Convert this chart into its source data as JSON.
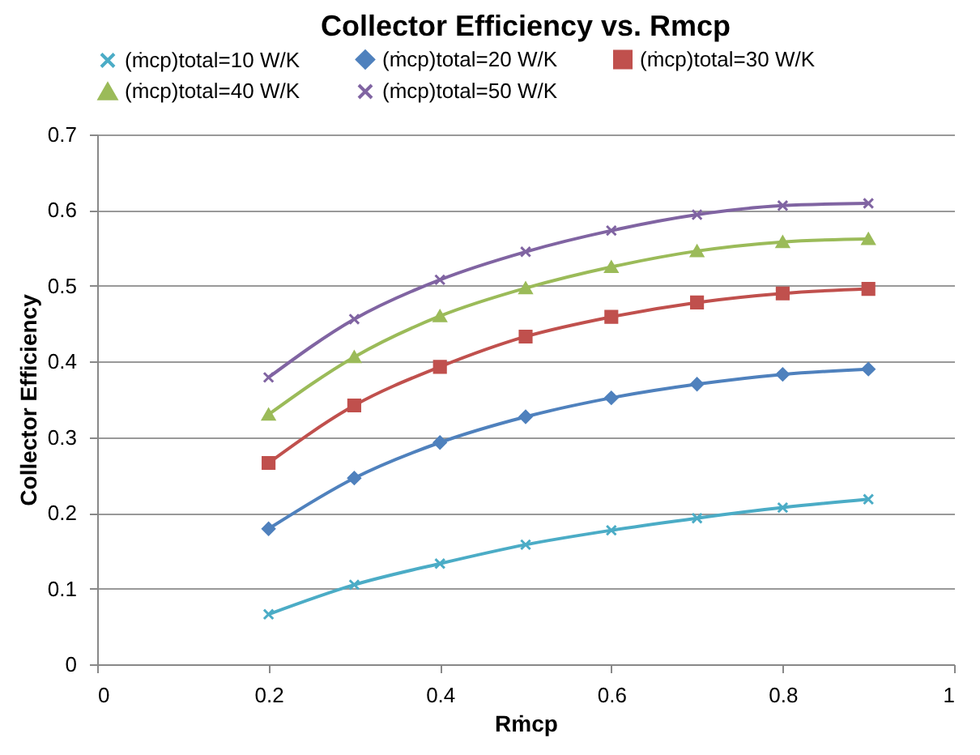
{
  "chart_data": {
    "type": "line",
    "title": "Collector Efficiency vs. Rmcp",
    "xlabel": "Rṁcp",
    "ylabel": "Collector Efficiency",
    "x": [
      0.2,
      0.3,
      0.4,
      0.5,
      0.6,
      0.7,
      0.8,
      0.9
    ],
    "series": [
      {
        "name": "(ṁcp)total=10 W/K",
        "color": "#4bacc6",
        "marker": "cross",
        "values": [
          0.066,
          0.105,
          0.133,
          0.158,
          0.177,
          0.193,
          0.207,
          0.218
        ]
      },
      {
        "name": "(ṁcp)total=20 W/K",
        "color": "#4f81bd",
        "marker": "diamond",
        "values": [
          0.179,
          0.246,
          0.293,
          0.327,
          0.352,
          0.37,
          0.383,
          0.39
        ]
      },
      {
        "name": "(ṁcp)total=30 W/K",
        "color": "#c0504d",
        "marker": "square",
        "values": [
          0.266,
          0.342,
          0.393,
          0.433,
          0.459,
          0.478,
          0.49,
          0.496
        ]
      },
      {
        "name": "(ṁcp)total=40 W/K",
        "color": "#9bbb59",
        "marker": "triangle",
        "values": [
          0.33,
          0.406,
          0.46,
          0.497,
          0.525,
          0.546,
          0.558,
          0.562
        ]
      },
      {
        "name": "(ṁcp)total=50 W/K",
        "color": "#8064a2",
        "marker": "cross",
        "values": [
          0.379,
          0.456,
          0.508,
          0.545,
          0.573,
          0.594,
          0.606,
          0.609
        ]
      }
    ],
    "xlim": [
      0,
      1
    ],
    "xticks": [
      0,
      0.2,
      0.4,
      0.6,
      0.8,
      1
    ],
    "ylim": [
      0,
      0.7
    ],
    "yticks": [
      0,
      0.1,
      0.2,
      0.3,
      0.4,
      0.5,
      0.6,
      0.7
    ],
    "grid": "y",
    "legend": "top",
    "line_style": "solid"
  }
}
